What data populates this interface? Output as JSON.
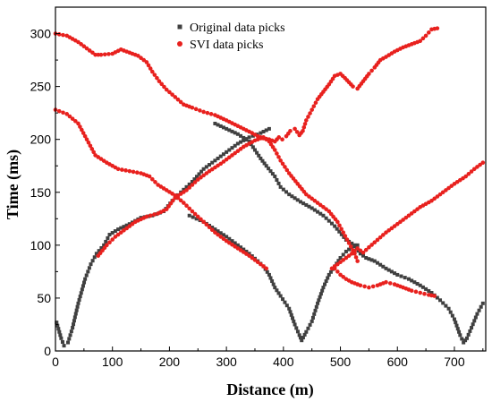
{
  "chart_data": {
    "type": "scatter",
    "xlabel": "Distance (m)",
    "ylabel": "Time (ms)",
    "xlim": [
      0,
      755
    ],
    "ylim": [
      0,
      325
    ],
    "xticks": [
      0,
      100,
      200,
      300,
      400,
      500,
      600,
      700
    ],
    "yticks": [
      0,
      50,
      100,
      150,
      200,
      250,
      300
    ],
    "grid": false,
    "legend_position": "top-center",
    "series": [
      {
        "name": "Original data picks",
        "color": "#404040",
        "marker": "square",
        "segments": [
          [
            [
              2,
              27
            ],
            [
              10,
              12
            ],
            [
              15,
              5
            ],
            [
              22,
              8
            ],
            [
              30,
              22
            ],
            [
              40,
              45
            ],
            [
              52,
              68
            ],
            [
              62,
              82
            ],
            [
              72,
              92
            ],
            [
              85,
              100
            ],
            [
              95,
              110
            ],
            [
              110,
              115
            ],
            [
              130,
              120
            ],
            [
              150,
              126
            ],
            [
              170,
              128
            ],
            [
              190,
              132
            ],
            [
              205,
              142
            ],
            [
              220,
              150
            ],
            [
              240,
              160
            ],
            [
              260,
              172
            ],
            [
              280,
              180
            ],
            [
              300,
              188
            ],
            [
              320,
              196
            ],
            [
              340,
              202
            ],
            [
              360,
              206
            ],
            [
              375,
              210
            ]
          ],
          [
            [
              235,
              128
            ],
            [
              260,
              122
            ],
            [
              280,
              115
            ],
            [
              300,
              108
            ],
            [
              320,
              100
            ],
            [
              340,
              92
            ],
            [
              355,
              85
            ],
            [
              365,
              80
            ],
            [
              375,
              72
            ],
            [
              385,
              60
            ],
            [
              395,
              52
            ],
            [
              410,
              40
            ],
            [
              420,
              25
            ],
            [
              428,
              15
            ],
            [
              432,
              10
            ],
            [
              440,
              18
            ],
            [
              450,
              28
            ],
            [
              460,
              45
            ],
            [
              470,
              60
            ],
            [
              480,
              72
            ],
            [
              490,
              80
            ],
            [
              500,
              88
            ],
            [
              510,
              94
            ],
            [
              520,
              98
            ],
            [
              530,
              100
            ]
          ],
          [
            [
              280,
              215
            ],
            [
              300,
              210
            ],
            [
              320,
              205
            ],
            [
              340,
              198
            ],
            [
              350,
              190
            ],
            [
              360,
              182
            ],
            [
              370,
              175
            ],
            [
              385,
              165
            ],
            [
              395,
              155
            ],
            [
              410,
              148
            ],
            [
              430,
              141
            ],
            [
              450,
              135
            ],
            [
              470,
              128
            ],
            [
              490,
              118
            ],
            [
              510,
              105
            ],
            [
              525,
              100
            ],
            [
              535,
              92
            ],
            [
              545,
              88
            ],
            [
              560,
              85
            ],
            [
              580,
              78
            ],
            [
              600,
              72
            ],
            [
              620,
              68
            ],
            [
              640,
              62
            ],
            [
              660,
              55
            ],
            [
              675,
              48
            ],
            [
              690,
              40
            ],
            [
              700,
              30
            ],
            [
              710,
              15
            ],
            [
              716,
              8
            ],
            [
              722,
              12
            ],
            [
              730,
              22
            ],
            [
              740,
              35
            ],
            [
              750,
              45
            ]
          ]
        ]
      },
      {
        "name": "SVI data picks",
        "color": "#e8211e",
        "marker": "circle",
        "segments": [
          [
            [
              0,
              300
            ],
            [
              20,
              298
            ],
            [
              40,
              292
            ],
            [
              60,
              284
            ],
            [
              70,
              280
            ],
            [
              80,
              280
            ],
            [
              100,
              281
            ],
            [
              115,
              285
            ],
            [
              130,
              282
            ],
            [
              145,
              279
            ],
            [
              160,
              273
            ],
            [
              170,
              264
            ],
            [
              182,
              255
            ],
            [
              195,
              247
            ],
            [
              210,
              240
            ],
            [
              225,
              233
            ],
            [
              240,
              230
            ],
            [
              260,
              226
            ],
            [
              280,
              223
            ],
            [
              300,
              218
            ],
            [
              315,
              214
            ],
            [
              330,
              210
            ],
            [
              345,
              206
            ],
            [
              355,
              203
            ],
            [
              365,
              201
            ],
            [
              375,
              200
            ],
            [
              385,
              198
            ],
            [
              392,
              202
            ],
            [
              398,
              200
            ],
            [
              405,
              203
            ],
            [
              412,
              208
            ],
            [
              420,
              210
            ],
            [
              428,
              204
            ],
            [
              434,
              208
            ],
            [
              440,
              218
            ],
            [
              450,
              228
            ],
            [
              460,
              238
            ],
            [
              470,
              245
            ],
            [
              480,
              252
            ],
            [
              490,
              260
            ],
            [
              500,
              262
            ],
            [
              508,
              258
            ],
            [
              515,
              254
            ],
            [
              522,
              250
            ],
            [
              530,
              248
            ],
            [
              540,
              255
            ],
            [
              550,
              262
            ],
            [
              560,
              268
            ],
            [
              570,
              275
            ],
            [
              580,
              278
            ],
            [
              595,
              283
            ],
            [
              610,
              287
            ],
            [
              625,
              290
            ],
            [
              640,
              293
            ],
            [
              650,
              298
            ],
            [
              660,
              304
            ],
            [
              670,
              305
            ]
          ],
          [
            [
              0,
              228
            ],
            [
              20,
              224
            ],
            [
              40,
              215
            ],
            [
              55,
              200
            ],
            [
              70,
              185
            ],
            [
              90,
              178
            ],
            [
              110,
              172
            ],
            [
              130,
              170
            ],
            [
              150,
              168
            ],
            [
              165,
              165
            ],
            [
              180,
              157
            ],
            [
              195,
              152
            ],
            [
              210,
              147
            ],
            [
              225,
              140
            ],
            [
              240,
              132
            ],
            [
              260,
              122
            ],
            [
              280,
              112
            ],
            [
              300,
              104
            ],
            [
              320,
              97
            ],
            [
              340,
              90
            ],
            [
              360,
              82
            ],
            [
              370,
              78
            ]
          ],
          [
            [
              75,
              90
            ],
            [
              90,
              100
            ],
            [
              105,
              108
            ],
            [
              120,
              114
            ],
            [
              140,
              122
            ],
            [
              160,
              127
            ],
            [
              180,
              130
            ],
            [
              195,
              134
            ],
            [
              210,
              145
            ],
            [
              230,
              152
            ],
            [
              250,
              162
            ],
            [
              270,
              170
            ],
            [
              290,
              177
            ],
            [
              310,
              185
            ],
            [
              330,
              193
            ],
            [
              350,
              199
            ],
            [
              365,
              202
            ],
            [
              375,
              198
            ],
            [
              385,
              190
            ],
            [
              395,
              180
            ],
            [
              410,
              168
            ],
            [
              425,
              158
            ],
            [
              440,
              148
            ],
            [
              460,
              140
            ],
            [
              480,
              132
            ],
            [
              495,
              122
            ],
            [
              505,
              112
            ],
            [
              515,
              102
            ],
            [
              525,
              92
            ],
            [
              530,
              85
            ]
          ],
          [
            [
              485,
              78
            ],
            [
              495,
              82
            ],
            [
              505,
              86
            ],
            [
              520,
              92
            ],
            [
              530,
              97
            ],
            [
              540,
              93
            ],
            [
              550,
              98
            ],
            [
              565,
              105
            ],
            [
              580,
              112
            ],
            [
              600,
              120
            ],
            [
              620,
              128
            ],
            [
              640,
              136
            ],
            [
              660,
              142
            ],
            [
              680,
              150
            ],
            [
              700,
              158
            ],
            [
              720,
              165
            ],
            [
              735,
              172
            ],
            [
              750,
              178
            ]
          ],
          [
            [
              490,
              78
            ],
            [
              500,
              72
            ],
            [
              510,
              68
            ],
            [
              520,
              65
            ],
            [
              535,
              62
            ],
            [
              550,
              60
            ],
            [
              565,
              62
            ],
            [
              580,
              65
            ],
            [
              595,
              63
            ],
            [
              610,
              60
            ],
            [
              625,
              57
            ],
            [
              640,
              55
            ],
            [
              655,
              53
            ],
            [
              665,
              52
            ]
          ]
        ]
      }
    ]
  }
}
